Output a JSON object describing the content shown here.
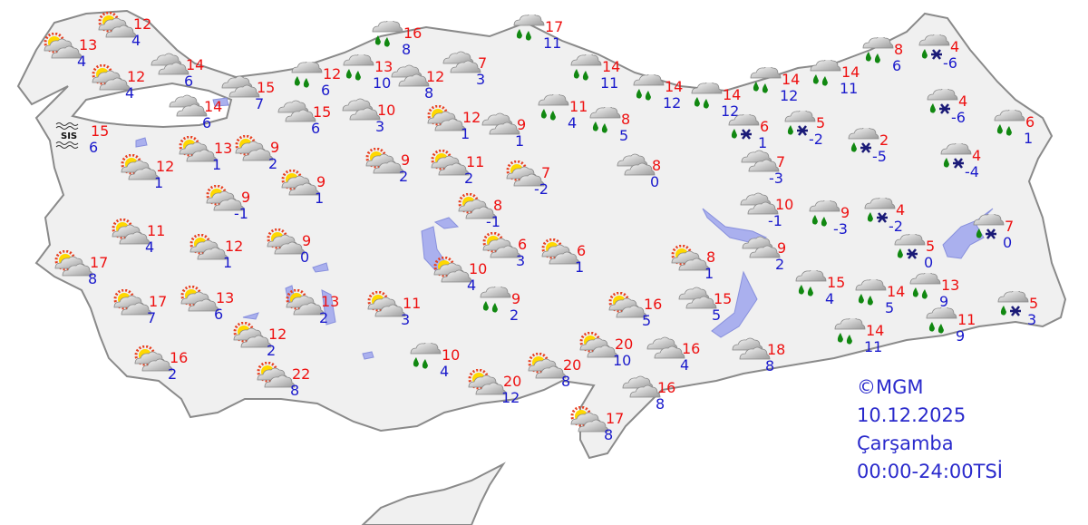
{
  "legend": {
    "copyright": "©MGM",
    "date": "10.12.2025",
    "day": "Çarşamba",
    "time_range": "00:00-24:00TSİ"
  },
  "icon_types": {
    "ps": "partly-cloudy-icon",
    "c": "cloudy-icon",
    "r": "rain-icon",
    "rs": "sleet-icon",
    "f": "fog-icon"
  },
  "fog_label": "SIS",
  "colors": {
    "high": "#ee1111",
    "low": "#1a1acc",
    "land": "#f0f0f0",
    "water": "#aab0ee",
    "rain": "#118811",
    "snow": "#1a1a77"
  },
  "stations": [
    {
      "type": "ps",
      "high": "12",
      "low": "4"
    },
    {
      "type": "ps",
      "high": "13",
      "low": "4"
    },
    {
      "type": "ps",
      "high": "12",
      "low": "4"
    },
    {
      "type": "c",
      "high": "14",
      "low": "6"
    },
    {
      "type": "f",
      "high": "15",
      "low": "6"
    },
    {
      "type": "c",
      "high": "15",
      "low": "7"
    },
    {
      "type": "c",
      "high": "14",
      "low": "6"
    },
    {
      "type": "r",
      "high": "12",
      "low": "6"
    },
    {
      "type": "r",
      "high": "13",
      "low": "10"
    },
    {
      "type": "r",
      "high": "16",
      "low": "8"
    },
    {
      "type": "c",
      "high": "15",
      "low": "6"
    },
    {
      "type": "c",
      "high": "10",
      "low": "3"
    },
    {
      "type": "c",
      "high": "12",
      "low": "8"
    },
    {
      "type": "c",
      "high": "7",
      "low": "3"
    },
    {
      "type": "r",
      "high": "17",
      "low": "11"
    },
    {
      "type": "r",
      "high": "14",
      "low": "11"
    },
    {
      "type": "ps",
      "high": "12",
      "low": "1"
    },
    {
      "type": "c",
      "high": "9",
      "low": "1"
    },
    {
      "type": "r",
      "high": "11",
      "low": "4"
    },
    {
      "type": "r",
      "high": "8",
      "low": "5"
    },
    {
      "type": "c",
      "high": "8",
      "low": "0"
    },
    {
      "type": "r",
      "high": "14",
      "low": "12"
    },
    {
      "type": "r",
      "high": "14",
      "low": "12"
    },
    {
      "type": "r",
      "high": "14",
      "low": "12"
    },
    {
      "type": "r",
      "high": "14",
      "low": "11"
    },
    {
      "type": "r",
      "high": "8",
      "low": "6"
    },
    {
      "type": "rs",
      "high": "4",
      "low": "-6"
    },
    {
      "type": "rs",
      "high": "6",
      "low": "1"
    },
    {
      "type": "rs",
      "high": "5",
      "low": "-2"
    },
    {
      "type": "rs",
      "high": "2",
      "low": "-5"
    },
    {
      "type": "rs",
      "high": "4",
      "low": "-6"
    },
    {
      "type": "r",
      "high": "6",
      "low": "1"
    },
    {
      "type": "c",
      "high": "7",
      "low": "-3"
    },
    {
      "type": "rs",
      "high": "4",
      "low": "-4"
    },
    {
      "type": "c",
      "high": "10",
      "low": "-1"
    },
    {
      "type": "r",
      "high": "9",
      "low": "-3"
    },
    {
      "type": "rs",
      "high": "4",
      "low": "-2"
    },
    {
      "type": "rs",
      "high": "5",
      "low": "0"
    },
    {
      "type": "rs",
      "high": "7",
      "low": "0"
    },
    {
      "type": "c",
      "high": "9",
      "low": "2"
    },
    {
      "type": "ps",
      "high": "13",
      "low": "1"
    },
    {
      "type": "ps",
      "high": "9",
      "low": "2"
    },
    {
      "type": "ps",
      "high": "12",
      "low": "1"
    },
    {
      "type": "ps",
      "high": "9",
      "low": "1"
    },
    {
      "type": "ps",
      "high": "9",
      "low": "-1"
    },
    {
      "type": "ps",
      "high": "9",
      "low": "2"
    },
    {
      "type": "ps",
      "high": "11",
      "low": "2"
    },
    {
      "type": "ps",
      "high": "7",
      "low": "-2"
    },
    {
      "type": "ps",
      "high": "8",
      "low": "-1"
    },
    {
      "type": "ps",
      "high": "11",
      "low": "4"
    },
    {
      "type": "ps",
      "high": "12",
      "low": "1"
    },
    {
      "type": "ps",
      "high": "9",
      "low": "0"
    },
    {
      "type": "ps",
      "high": "17",
      "low": "8"
    },
    {
      "type": "ps",
      "high": "10",
      "low": "4"
    },
    {
      "type": "ps",
      "high": "6",
      "low": "3"
    },
    {
      "type": "ps",
      "high": "6",
      "low": "1"
    },
    {
      "type": "ps",
      "high": "8",
      "low": "1"
    },
    {
      "type": "ps",
      "high": "17",
      "low": "7"
    },
    {
      "type": "ps",
      "high": "13",
      "low": "6"
    },
    {
      "type": "ps",
      "high": "13",
      "low": "2"
    },
    {
      "type": "ps",
      "high": "11",
      "low": "3"
    },
    {
      "type": "r",
      "high": "9",
      "low": "2"
    },
    {
      "type": "ps",
      "high": "16",
      "low": "5"
    },
    {
      "type": "c",
      "high": "15",
      "low": "5"
    },
    {
      "type": "r",
      "high": "15",
      "low": "4"
    },
    {
      "type": "r",
      "high": "14",
      "low": "5"
    },
    {
      "type": "r",
      "high": "13",
      "low": "9"
    },
    {
      "type": "rs",
      "high": "5",
      "low": "3"
    },
    {
      "type": "r",
      "high": "11",
      "low": "9"
    },
    {
      "type": "r",
      "high": "14",
      "low": "11"
    },
    {
      "type": "c",
      "high": "18",
      "low": "8"
    },
    {
      "type": "c",
      "high": "16",
      "low": "4"
    },
    {
      "type": "ps",
      "high": "20",
      "low": "10"
    },
    {
      "type": "ps",
      "high": "16",
      "low": "2"
    },
    {
      "type": "ps",
      "high": "12",
      "low": "2"
    },
    {
      "type": "r",
      "high": "10",
      "low": "4"
    },
    {
      "type": "ps",
      "high": "22",
      "low": "8"
    },
    {
      "type": "ps",
      "high": "20",
      "low": "8"
    },
    {
      "type": "ps",
      "high": "20",
      "low": "12"
    },
    {
      "type": "c",
      "high": "16",
      "low": "8"
    },
    {
      "type": "ps",
      "high": "17",
      "low": "8"
    }
  ]
}
